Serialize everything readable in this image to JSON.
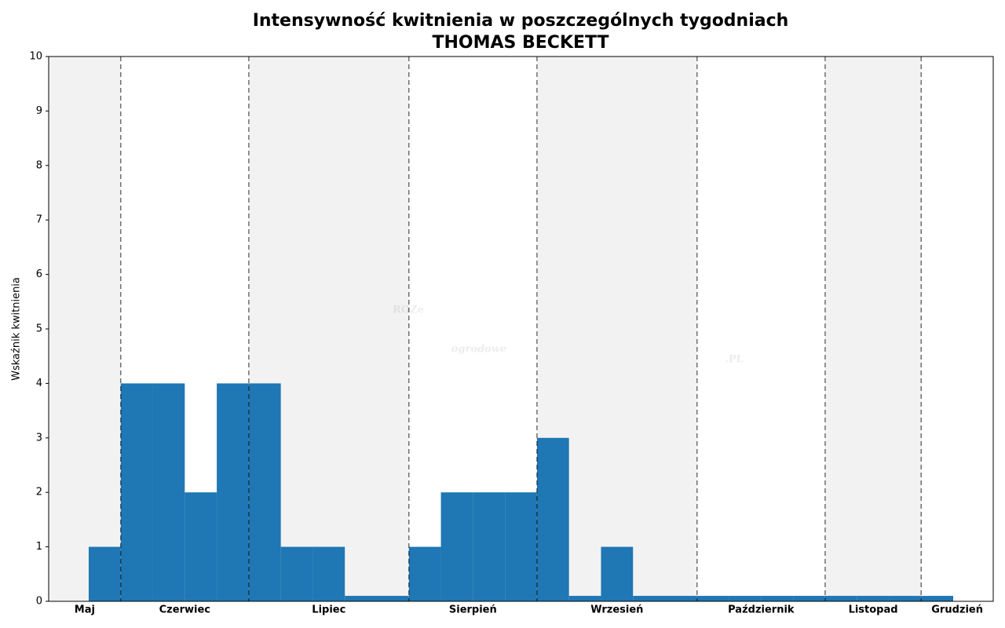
{
  "chart_data": {
    "type": "bar",
    "title": "Intensywność kwitnienia w poszczególnych tygodniach",
    "subtitle": "THOMAS BECKETT",
    "y_label": "Wskaźnik kwitnienia",
    "watermark": [
      "ROZe",
      "ogrodowe",
      ".PL"
    ],
    "x": [
      1,
      2,
      3,
      4,
      5,
      6,
      7,
      8,
      9,
      10,
      11,
      12,
      13,
      14,
      15,
      16,
      17,
      18,
      19,
      20,
      21,
      22,
      23,
      24,
      25,
      26,
      27
    ],
    "values": [
      1,
      4,
      4,
      2,
      4,
      4,
      1,
      1,
      0.1,
      0.1,
      1,
      2,
      2,
      2,
      3,
      0.1,
      1,
      0.1,
      0.1,
      0.1,
      0.1,
      0.1,
      0.1,
      0.1,
      0.1,
      0.1,
      0.1
    ],
    "color": "#1f77b4",
    "months": [
      "Maj",
      "Czerwiec",
      "Lipiec",
      "Sierpień",
      "Wrzesień",
      "Październik",
      "Listopad",
      "Grudzień"
    ],
    "month_starts": [
      1.5,
      5.5,
      10.5,
      14.5,
      19.5,
      23.5,
      26.5
    ],
    "xlim": [
      -0.75,
      28.75
    ],
    "ylim": [
      0,
      10
    ],
    "yticks": [
      0,
      1,
      2,
      3,
      4,
      5,
      6,
      7,
      8,
      9,
      10
    ]
  }
}
